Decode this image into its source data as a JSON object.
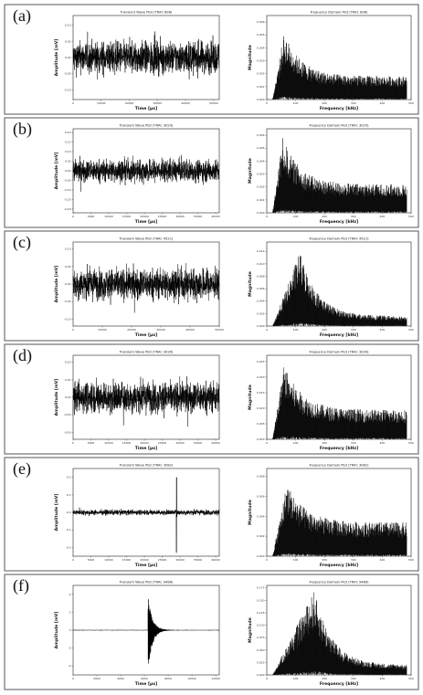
{
  "labels": {
    "time_axis": "Time [µs]",
    "amp_axis": "Amplitude [mV]",
    "freq_axis": "Frequency [kHz]",
    "mag_axis": "Magnitude"
  },
  "chart_data": [
    {
      "letter": "(a)",
      "transient": {
        "type": "line",
        "title": "Transient Wave Plot (TRAI: 898)",
        "xlabel": "Time [µs]",
        "ylabel": "Amplitude [mV]",
        "x_ticks": [
          "0",
          "10000",
          "20000",
          "30000",
          "40000",
          "50000"
        ],
        "xlim": [
          0,
          52000
        ],
        "y_ticks": [
          "-0.10",
          "-0.05",
          "0.00",
          "0.05",
          "0.10"
        ],
        "ylim": [
          -0.13,
          0.13
        ],
        "envelope": 0.085
      },
      "spectrum": {
        "type": "line",
        "title": "Frequency Domain Plot (TRAI: 898)",
        "xlabel": "Frequency [kHz]",
        "ylabel": "Magnitude",
        "x_ticks": [
          "0",
          "100",
          "200",
          "300",
          "400",
          "500"
        ],
        "xlim": [
          0,
          500
        ],
        "y_ticks": [
          "0.000",
          "0.001",
          "0.002",
          "0.003",
          "0.004",
          "0.005",
          "0.006"
        ],
        "ylim": [
          0,
          0.0065
        ],
        "peak_khz": 60,
        "peak_value": 0.0052,
        "floor": 0.0018
      }
    },
    {
      "letter": "(b)",
      "transient": {
        "type": "line",
        "title": "Transient Wave Plot (TRAI: 3029)",
        "xlabel": "Time [µs]",
        "ylabel": "Amplitude [mV]",
        "x_ticks": [
          "0",
          "5000",
          "10000",
          "15000",
          "20000",
          "25000",
          "30000",
          "35000",
          "40000"
        ],
        "xlim": [
          0,
          41000
        ],
        "y_ticks": [
          "-0.20",
          "-0.15",
          "-0.10",
          "-0.05",
          "0.00",
          "0.05",
          "0.10",
          "0.15",
          "0.20"
        ],
        "ylim": [
          -0.22,
          0.22
        ],
        "envelope": 0.1
      },
      "spectrum": {
        "type": "line",
        "title": "Frequency Domain Plot (TRAI: 3029)",
        "xlabel": "Frequency [kHz]",
        "ylabel": "Magnitude",
        "x_ticks": [
          "0",
          "100",
          "200",
          "300",
          "400",
          "500"
        ],
        "xlim": [
          0,
          500
        ],
        "y_ticks": [
          "0.000",
          "0.001",
          "0.002",
          "0.003",
          "0.004",
          "0.005",
          "0.006"
        ],
        "ylim": [
          0,
          0.0065
        ],
        "peak_khz": 55,
        "peak_value": 0.0058,
        "floor": 0.0022
      }
    },
    {
      "letter": "(c)",
      "transient": {
        "type": "line",
        "title": "Transient Wave Plot (TRAI: 4521)",
        "xlabel": "Time [µs]",
        "ylabel": "Amplitude [mV]",
        "x_ticks": [
          "0",
          "10000",
          "20000",
          "30000",
          "40000",
          "50000"
        ],
        "xlim": [
          0,
          50000
        ],
        "y_ticks": [
          "-0.10",
          "-0.05",
          "0.00",
          "0.05",
          "0.10"
        ],
        "ylim": [
          -0.12,
          0.12
        ],
        "envelope": 0.075
      },
      "spectrum": {
        "type": "line",
        "title": "Frequency Domain Plot (TRAI: 4521)",
        "xlabel": "Frequency [kHz]",
        "ylabel": "Magnitude",
        "x_ticks": [
          "0",
          "100",
          "200",
          "300",
          "400",
          "500"
        ],
        "xlim": [
          0,
          500
        ],
        "y_ticks": [
          "0.000",
          "0.002",
          "0.004",
          "0.006",
          "0.008",
          "0.010",
          "0.012"
        ],
        "ylim": [
          0,
          0.0135
        ],
        "peak_khz": 115,
        "peak_value": 0.012,
        "floor": 0.0016
      }
    },
    {
      "letter": "(d)",
      "transient": {
        "type": "line",
        "title": "Transient Wave Plot (TRAI: 3026)",
        "xlabel": "Time [µs]",
        "ylabel": "Amplitude [mV]",
        "x_ticks": [
          "0",
          "5000",
          "10000",
          "15000",
          "20000",
          "25000",
          "30000",
          "35000",
          "40000"
        ],
        "xlim": [
          0,
          41000
        ],
        "y_ticks": [
          "-0.50",
          "-0.25",
          "0.00",
          "0.25",
          "0.50"
        ],
        "ylim": [
          -0.6,
          0.6
        ],
        "envelope": 0.38
      },
      "spectrum": {
        "type": "line",
        "title": "Frequency Domain Plot (TRAI: 3026)",
        "xlabel": "Frequency [kHz]",
        "ylabel": "Magnitude",
        "x_ticks": [
          "0",
          "100",
          "200",
          "300",
          "400",
          "500"
        ],
        "xlim": [
          0,
          500
        ],
        "y_ticks": [
          "0.000",
          "0.005",
          "0.010",
          "0.015",
          "0.020",
          "0.025"
        ],
        "ylim": [
          0,
          0.027
        ],
        "peak_khz": 60,
        "peak_value": 0.024,
        "floor": 0.0095
      }
    },
    {
      "letter": "(e)",
      "transient": {
        "type": "line",
        "title": "Transient Wave Plot (TRAI: 3082)",
        "xlabel": "Time [µs]",
        "ylabel": "Amplitude [mV]",
        "x_ticks": [
          "0",
          "5000",
          "10000",
          "15000",
          "20000",
          "25000",
          "30000",
          "35000",
          "40000"
        ],
        "xlim": [
          0,
          41000
        ],
        "y_ticks": [
          "-0.2",
          "-0.1",
          "0.0",
          "0.1",
          "0.2"
        ],
        "ylim": [
          -0.25,
          0.25
        ],
        "envelope": 0.025,
        "spike_at": 29000,
        "spike_max": 0.2,
        "spike_min": -0.23
      },
      "spectrum": {
        "type": "line",
        "title": "Frequency Domain Plot (TRAI: 3082)",
        "xlabel": "Frequency [kHz]",
        "ylabel": "Magnitude",
        "x_ticks": [
          "0",
          "100",
          "200",
          "300",
          "400",
          "500"
        ],
        "xlim": [
          0,
          500
        ],
        "y_ticks": [
          "0.000",
          "0.002",
          "0.004",
          "0.006",
          "0.008"
        ],
        "ylim": [
          0,
          0.0088
        ],
        "peak_khz": 70,
        "peak_value": 0.0074,
        "floor": 0.0034
      }
    },
    {
      "letter": "(f)",
      "transient": {
        "type": "line",
        "title": "Transient Wave Plot (TRAI: 9486)",
        "xlabel": "Time [µs]",
        "ylabel": "Amplitude [mV]",
        "x_ticks": [
          "0",
          "2000",
          "4000",
          "6000",
          "8000",
          "10000",
          "12000"
        ],
        "xlim": [
          0,
          12300
        ],
        "y_ticks": [
          "-4",
          "-2",
          "0",
          "2",
          "4"
        ],
        "ylim": [
          -5,
          5
        ],
        "envelope": 0.05,
        "burst_at": 6300,
        "burst_max": 3.9,
        "burst_min": -4.6
      },
      "spectrum": {
        "type": "line",
        "title": "Frequency Domain Plot (TRAI: 9486)",
        "xlabel": "Frequency [kHz]",
        "ylabel": "Magnitude",
        "x_ticks": [
          "0",
          "100",
          "200",
          "300",
          "400",
          "500"
        ],
        "xlim": [
          0,
          500
        ],
        "y_ticks": [
          "0.000",
          "0.025",
          "0.050",
          "0.075",
          "0.100",
          "0.125",
          "0.150",
          "0.175"
        ],
        "ylim": [
          0,
          0.18
        ],
        "peak_khz": 165,
        "peak_value": 0.17,
        "floor": 0.02
      }
    }
  ]
}
